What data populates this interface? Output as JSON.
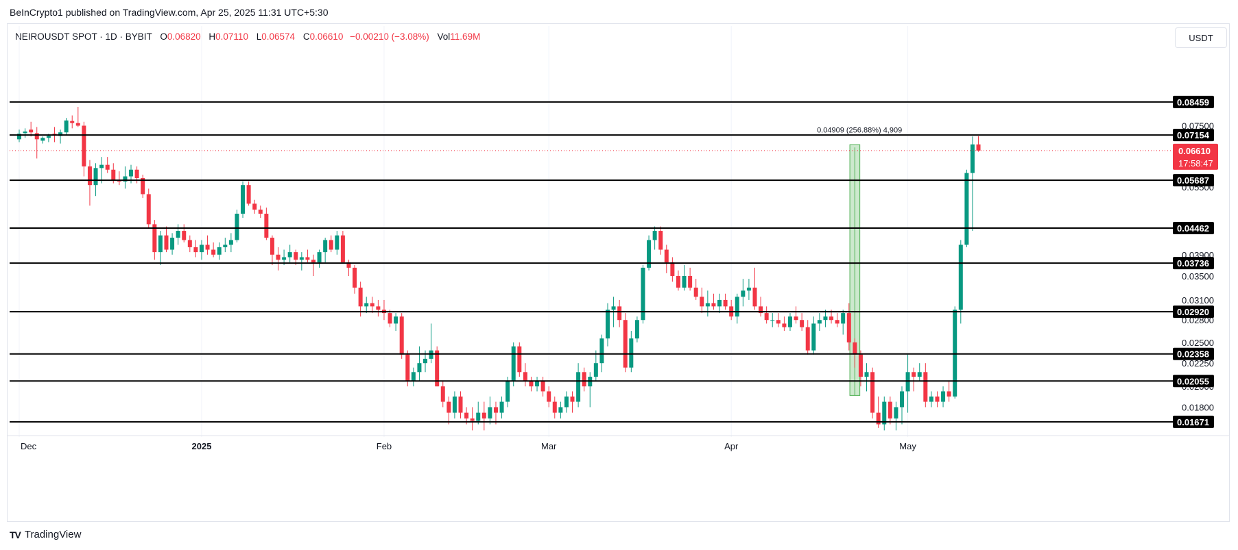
{
  "header": {
    "publisher_line": "BeInCrypto1 published on TradingView.com, Apr 25, 2025 11:31 UTC+5:30"
  },
  "legend": {
    "symbol": "NEIROUSDT SPOT · 1D · BYBIT",
    "open_label": "O",
    "open": "0.06820",
    "high_label": "H",
    "high": "0.07110",
    "low_label": "L",
    "low": "0.06574",
    "close_label": "C",
    "close": "0.06610",
    "change": "−0.00210 (−3.08%)",
    "volume_label": "Vol",
    "volume": "11.69M"
  },
  "currency": "USDT",
  "footer": {
    "brand": "TradingView",
    "logo_text": "TV"
  },
  "colors": {
    "up": "#089981",
    "down": "#f23645",
    "level": "#000000",
    "measure": "#4caf50"
  },
  "chart_data": {
    "type": "candlestick",
    "scale": "log",
    "ylim": [
      0.0158,
      0.112
    ],
    "x_ticks": [
      {
        "label": "Dec",
        "day": 0,
        "bold": false
      },
      {
        "label": "2025",
        "day": 31,
        "bold": true
      },
      {
        "label": "Feb",
        "day": 62,
        "bold": false
      },
      {
        "label": "Mar",
        "day": 90,
        "bold": false
      },
      {
        "label": "Apr",
        "day": 121,
        "bold": false
      },
      {
        "label": "May",
        "day": 151,
        "bold": false
      }
    ],
    "y_ticks": [
      "0.07500",
      "0.05500",
      "0.03900",
      "0.03500",
      "0.03100",
      "0.02800",
      "0.02500",
      "0.02250",
      "0.02000",
      "0.01800"
    ],
    "levels": [
      "0.08459",
      "0.07154",
      "0.05687",
      "0.04462",
      "0.03736",
      "0.02920",
      "0.02358",
      "0.02055",
      "0.01671"
    ],
    "current_price": "0.06610",
    "countdown": "17:58:47",
    "measure": {
      "label": "0.04909 (256.88%) 4,909",
      "from_price": 0.0191,
      "to_price": 0.0681,
      "start_day": 141.5,
      "end_day": 142.5
    },
    "ohlc": [
      [
        0.07,
        0.0735,
        0.069,
        0.072
      ],
      [
        0.0722,
        0.074,
        0.0705,
        0.0728
      ],
      [
        0.0735,
        0.0765,
        0.071,
        0.0725
      ],
      [
        0.0722,
        0.0745,
        0.0635,
        0.07
      ],
      [
        0.0695,
        0.071,
        0.0685,
        0.0705
      ],
      [
        0.0705,
        0.072,
        0.069,
        0.0712
      ],
      [
        0.072,
        0.0745,
        0.069,
        0.0715
      ],
      [
        0.0712,
        0.0735,
        0.0685,
        0.0725
      ],
      [
        0.0725,
        0.078,
        0.0715,
        0.077
      ],
      [
        0.0768,
        0.079,
        0.074,
        0.076
      ],
      [
        0.076,
        0.0825,
        0.0745,
        0.075
      ],
      [
        0.075,
        0.0765,
        0.058,
        0.061
      ],
      [
        0.061,
        0.063,
        0.05,
        0.0555
      ],
      [
        0.0555,
        0.062,
        0.0525,
        0.0605
      ],
      [
        0.0605,
        0.064,
        0.056,
        0.0615
      ],
      [
        0.0615,
        0.064,
        0.059,
        0.06
      ],
      [
        0.06,
        0.062,
        0.056,
        0.057
      ],
      [
        0.057,
        0.0595,
        0.0555,
        0.0565
      ],
      [
        0.0565,
        0.061,
        0.0545,
        0.058
      ],
      [
        0.058,
        0.0615,
        0.056,
        0.06
      ],
      [
        0.06,
        0.061,
        0.056,
        0.0575
      ],
      [
        0.0575,
        0.0585,
        0.052,
        0.053
      ],
      [
        0.053,
        0.0545,
        0.0445,
        0.0455
      ],
      [
        0.0455,
        0.0465,
        0.038,
        0.0395
      ],
      [
        0.0395,
        0.044,
        0.037,
        0.043
      ],
      [
        0.043,
        0.045,
        0.0395,
        0.04
      ],
      [
        0.04,
        0.0435,
        0.039,
        0.0425
      ],
      [
        0.0425,
        0.0455,
        0.041,
        0.044
      ],
      [
        0.044,
        0.0455,
        0.0415,
        0.042
      ],
      [
        0.042,
        0.043,
        0.0395,
        0.0405
      ],
      [
        0.0405,
        0.042,
        0.0385,
        0.0395
      ],
      [
        0.0395,
        0.042,
        0.038,
        0.041
      ],
      [
        0.041,
        0.043,
        0.039,
        0.04
      ],
      [
        0.04,
        0.0415,
        0.0385,
        0.039
      ],
      [
        0.039,
        0.0415,
        0.038,
        0.0405
      ],
      [
        0.0405,
        0.0425,
        0.0395,
        0.041
      ],
      [
        0.041,
        0.0435,
        0.0395,
        0.042
      ],
      [
        0.042,
        0.049,
        0.0415,
        0.048
      ],
      [
        0.048,
        0.0565,
        0.047,
        0.0555
      ],
      [
        0.0555,
        0.0565,
        0.05,
        0.0505
      ],
      [
        0.0505,
        0.0515,
        0.048,
        0.049
      ],
      [
        0.049,
        0.05,
        0.047,
        0.048
      ],
      [
        0.048,
        0.0495,
        0.042,
        0.0425
      ],
      [
        0.0425,
        0.043,
        0.037,
        0.039
      ],
      [
        0.039,
        0.0405,
        0.036,
        0.038
      ],
      [
        0.038,
        0.04,
        0.037,
        0.0385
      ],
      [
        0.0385,
        0.041,
        0.0375,
        0.0395
      ],
      [
        0.0395,
        0.04,
        0.037,
        0.038
      ],
      [
        0.038,
        0.0395,
        0.036,
        0.0385
      ],
      [
        0.0385,
        0.04,
        0.0375,
        0.038
      ],
      [
        0.038,
        0.039,
        0.035,
        0.0375
      ],
      [
        0.0375,
        0.04,
        0.0365,
        0.0395
      ],
      [
        0.0395,
        0.0425,
        0.0375,
        0.042
      ],
      [
        0.042,
        0.043,
        0.0395,
        0.04
      ],
      [
        0.04,
        0.044,
        0.039,
        0.043
      ],
      [
        0.043,
        0.044,
        0.038,
        0.0375
      ],
      [
        0.0375,
        0.038,
        0.035,
        0.0365
      ],
      [
        0.0365,
        0.037,
        0.032,
        0.033
      ],
      [
        0.033,
        0.034,
        0.0285,
        0.03
      ],
      [
        0.03,
        0.0315,
        0.029,
        0.0305
      ],
      [
        0.0305,
        0.0315,
        0.029,
        0.03
      ],
      [
        0.03,
        0.031,
        0.0285,
        0.0295
      ],
      [
        0.0295,
        0.031,
        0.028,
        0.029
      ],
      [
        0.029,
        0.0295,
        0.027,
        0.0275
      ],
      [
        0.0275,
        0.029,
        0.0265,
        0.0285
      ],
      [
        0.0285,
        0.029,
        0.023,
        0.0235
      ],
      [
        0.0235,
        0.024,
        0.02,
        0.0205
      ],
      [
        0.0205,
        0.022,
        0.02,
        0.0215
      ],
      [
        0.0215,
        0.0245,
        0.0205,
        0.0225
      ],
      [
        0.0225,
        0.024,
        0.0215,
        0.023
      ],
      [
        0.023,
        0.0275,
        0.0225,
        0.024
      ],
      [
        0.024,
        0.0245,
        0.02,
        0.02
      ],
      [
        0.02,
        0.0205,
        0.018,
        0.0185
      ],
      [
        0.0185,
        0.019,
        0.0165,
        0.0175
      ],
      [
        0.0175,
        0.0195,
        0.017,
        0.019
      ],
      [
        0.019,
        0.0195,
        0.017,
        0.0175
      ],
      [
        0.0175,
        0.018,
        0.0165,
        0.017
      ],
      [
        0.017,
        0.018,
        0.016,
        0.0168
      ],
      [
        0.0168,
        0.0185,
        0.0165,
        0.0175
      ],
      [
        0.0175,
        0.0185,
        0.016,
        0.017
      ],
      [
        0.017,
        0.019,
        0.0165,
        0.018
      ],
      [
        0.018,
        0.0185,
        0.0165,
        0.0175
      ],
      [
        0.0175,
        0.019,
        0.017,
        0.0185
      ],
      [
        0.0185,
        0.021,
        0.018,
        0.0205
      ],
      [
        0.0205,
        0.025,
        0.02,
        0.0245
      ],
      [
        0.0245,
        0.025,
        0.021,
        0.0215
      ],
      [
        0.0215,
        0.0225,
        0.02,
        0.0205
      ],
      [
        0.0205,
        0.021,
        0.0195,
        0.02
      ],
      [
        0.02,
        0.021,
        0.0195,
        0.0205
      ],
      [
        0.0205,
        0.021,
        0.019,
        0.0195
      ],
      [
        0.0195,
        0.02,
        0.018,
        0.0185
      ],
      [
        0.0185,
        0.019,
        0.017,
        0.0175
      ],
      [
        0.0175,
        0.0185,
        0.017,
        0.018
      ],
      [
        0.018,
        0.0195,
        0.0175,
        0.019
      ],
      [
        0.019,
        0.0195,
        0.0175,
        0.0185
      ],
      [
        0.0185,
        0.0225,
        0.018,
        0.0215
      ],
      [
        0.0215,
        0.022,
        0.0195,
        0.02
      ],
      [
        0.02,
        0.0215,
        0.018,
        0.021
      ],
      [
        0.021,
        0.024,
        0.0205,
        0.0225
      ],
      [
        0.0225,
        0.026,
        0.0215,
        0.0255
      ],
      [
        0.0255,
        0.0305,
        0.0245,
        0.0295
      ],
      [
        0.0295,
        0.0315,
        0.027,
        0.03
      ],
      [
        0.03,
        0.031,
        0.027,
        0.028
      ],
      [
        0.028,
        0.029,
        0.0215,
        0.022
      ],
      [
        0.022,
        0.0265,
        0.0215,
        0.0255
      ],
      [
        0.0255,
        0.0285,
        0.025,
        0.028
      ],
      [
        0.028,
        0.037,
        0.0275,
        0.0365
      ],
      [
        0.0365,
        0.043,
        0.036,
        0.042
      ],
      [
        0.042,
        0.045,
        0.04,
        0.044
      ],
      [
        0.044,
        0.045,
        0.039,
        0.04
      ],
      [
        0.04,
        0.041,
        0.0355,
        0.0375
      ],
      [
        0.0375,
        0.0385,
        0.034,
        0.035
      ],
      [
        0.035,
        0.036,
        0.0325,
        0.033
      ],
      [
        0.033,
        0.037,
        0.0325,
        0.035
      ],
      [
        0.035,
        0.0365,
        0.0325,
        0.033
      ],
      [
        0.033,
        0.0345,
        0.031,
        0.0315
      ],
      [
        0.0315,
        0.033,
        0.029,
        0.03
      ],
      [
        0.03,
        0.0325,
        0.0285,
        0.0305
      ],
      [
        0.0305,
        0.032,
        0.0295,
        0.03
      ],
      [
        0.03,
        0.032,
        0.029,
        0.031
      ],
      [
        0.031,
        0.032,
        0.0295,
        0.03
      ],
      [
        0.03,
        0.031,
        0.028,
        0.0285
      ],
      [
        0.0285,
        0.032,
        0.0275,
        0.0315
      ],
      [
        0.0315,
        0.0345,
        0.03,
        0.0325
      ],
      [
        0.0325,
        0.0345,
        0.031,
        0.033
      ],
      [
        0.033,
        0.0365,
        0.0295,
        0.03
      ],
      [
        0.03,
        0.0315,
        0.0285,
        0.029
      ],
      [
        0.029,
        0.03,
        0.0275,
        0.028
      ],
      [
        0.028,
        0.029,
        0.027,
        0.028
      ],
      [
        0.028,
        0.029,
        0.027,
        0.0275
      ],
      [
        0.0275,
        0.0285,
        0.0265,
        0.027
      ],
      [
        0.027,
        0.029,
        0.0265,
        0.0285
      ],
      [
        0.0285,
        0.03,
        0.0275,
        0.028
      ],
      [
        0.028,
        0.029,
        0.0265,
        0.027
      ],
      [
        0.027,
        0.028,
        0.0235,
        0.024
      ],
      [
        0.024,
        0.0285,
        0.0235,
        0.0275
      ],
      [
        0.0275,
        0.029,
        0.0265,
        0.028
      ],
      [
        0.028,
        0.0295,
        0.027,
        0.0285
      ],
      [
        0.0285,
        0.0295,
        0.0275,
        0.028
      ],
      [
        0.028,
        0.029,
        0.027,
        0.0275
      ],
      [
        0.0275,
        0.0295,
        0.026,
        0.029
      ],
      [
        0.029,
        0.0305,
        0.024,
        0.025
      ],
      [
        0.025,
        0.0255,
        0.022,
        0.0235
      ],
      [
        0.0235,
        0.024,
        0.02,
        0.021
      ],
      [
        0.021,
        0.0225,
        0.0195,
        0.0215
      ],
      [
        0.0215,
        0.022,
        0.017,
        0.0175
      ],
      [
        0.0175,
        0.019,
        0.0162,
        0.0165
      ],
      [
        0.0165,
        0.019,
        0.016,
        0.0185
      ],
      [
        0.0185,
        0.019,
        0.0165,
        0.017
      ],
      [
        0.017,
        0.0185,
        0.016,
        0.018
      ],
      [
        0.018,
        0.02,
        0.0165,
        0.0195
      ],
      [
        0.0195,
        0.0235,
        0.0175,
        0.0215
      ],
      [
        0.0215,
        0.022,
        0.0195,
        0.021
      ],
      [
        0.021,
        0.0225,
        0.0205,
        0.0215
      ],
      [
        0.0215,
        0.0225,
        0.018,
        0.0185
      ],
      [
        0.0185,
        0.0195,
        0.018,
        0.019
      ],
      [
        0.019,
        0.0195,
        0.018,
        0.0185
      ],
      [
        0.0185,
        0.02,
        0.018,
        0.0195
      ],
      [
        0.0195,
        0.0205,
        0.0185,
        0.019
      ],
      [
        0.019,
        0.03,
        0.0188,
        0.0295
      ],
      [
        0.0295,
        0.042,
        0.0275,
        0.041
      ],
      [
        0.041,
        0.06,
        0.0405,
        0.059
      ],
      [
        0.059,
        0.071,
        0.044,
        0.0682
      ],
      [
        0.0682,
        0.0711,
        0.0657,
        0.0661
      ]
    ]
  }
}
